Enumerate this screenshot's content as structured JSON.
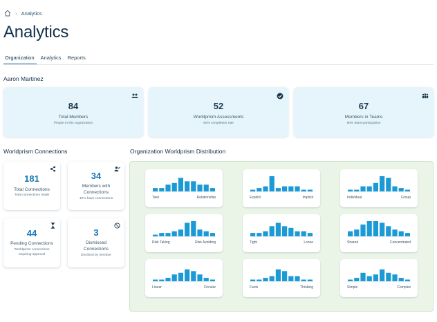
{
  "breadcrumb": {
    "current": "Analytics"
  },
  "page": {
    "title": "Analytics"
  },
  "tabs": [
    {
      "label": "Organization",
      "active": true
    },
    {
      "label": "Analytics",
      "active": false
    },
    {
      "label": "Reports",
      "active": false
    }
  ],
  "user": {
    "name": "Aaron Martinez"
  },
  "stats": [
    {
      "value": "84",
      "label": "Total Members",
      "sub": "People in this organization",
      "icon": "users-group-icon"
    },
    {
      "value": "52",
      "label": "Worldprism Assessments",
      "sub": "62% completion rate",
      "icon": "check-circle-icon"
    },
    {
      "value": "67",
      "label": "Members in Teams",
      "sub": "80% team participation",
      "icon": "team-icon"
    }
  ],
  "connections": {
    "title": "Worldprism Connections",
    "cards": [
      {
        "value": "181",
        "label": "Total Connections",
        "sub": "Total connections made",
        "icon": "share-icon"
      },
      {
        "value": "34",
        "label": "Members with Connections",
        "sub": "40% have connections",
        "icon": "user-check-icon"
      },
      {
        "value": "44",
        "label": "Pending Connections",
        "sub": "Worldprism connections requiring approval",
        "icon": "hourglass-icon"
      },
      {
        "value": "3",
        "label": "Dismissed Connections",
        "sub": "Declined by member",
        "icon": "ban-icon"
      }
    ]
  },
  "distribution": {
    "title": "Organization Worldprism Distribution",
    "bar_color": "#1b9ad6",
    "charts": [
      {
        "left": "Task",
        "right": "Relationship",
        "values": [
          2,
          2,
          4,
          5,
          8,
          6,
          6,
          4,
          4,
          2
        ]
      },
      {
        "left": "Explicit",
        "right": "Implicit",
        "values": [
          1,
          2,
          3,
          9,
          2,
          3,
          3,
          3,
          1,
          1
        ]
      },
      {
        "left": "Individual",
        "right": "Group",
        "values": [
          1,
          1,
          3,
          3,
          5,
          9,
          8,
          3,
          2,
          1
        ]
      },
      {
        "left": "Risk Taking",
        "right": "Risk Avoiding",
        "values": [
          1,
          2,
          2,
          3,
          4,
          8,
          9,
          4,
          3,
          2
        ]
      },
      {
        "left": "Tight",
        "right": "Loose",
        "values": [
          2,
          2,
          3,
          6,
          8,
          6,
          5,
          3,
          3,
          2
        ]
      },
      {
        "left": "Shared",
        "right": "Concentrated",
        "values": [
          3,
          4,
          7,
          9,
          9,
          8,
          6,
          4,
          3,
          2
        ]
      },
      {
        "left": "Linear",
        "right": "Circular",
        "values": [
          1,
          1,
          2,
          4,
          5,
          7,
          6,
          4,
          2,
          1
        ]
      },
      {
        "left": "Facts",
        "right": "Thinking",
        "values": [
          1,
          1,
          2,
          3,
          7,
          6,
          3,
          3,
          1,
          1
        ]
      },
      {
        "left": "Simple",
        "right": "Complex",
        "values": [
          1,
          2,
          5,
          3,
          4,
          7,
          5,
          4,
          2,
          1
        ]
      }
    ]
  }
}
